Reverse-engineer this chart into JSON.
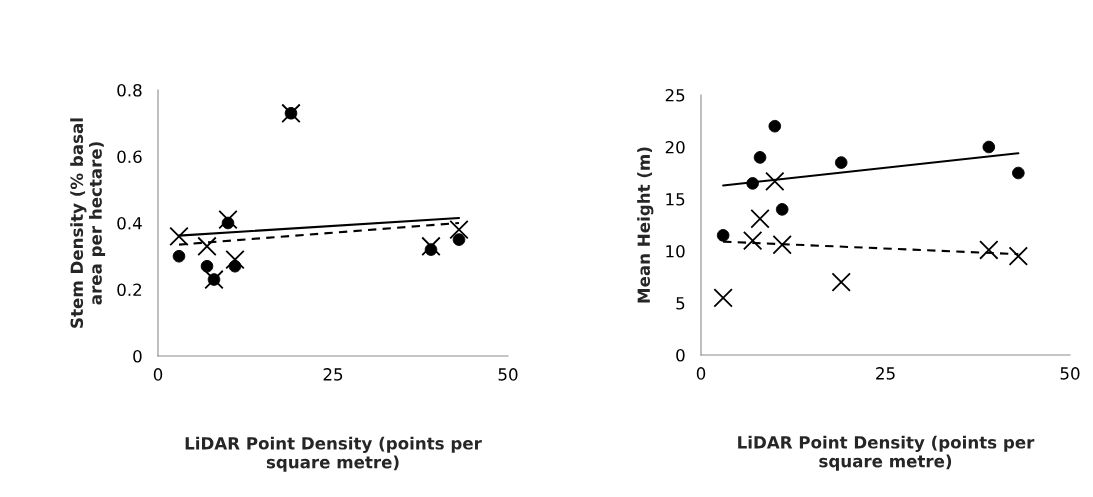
{
  "chart_data": [
    {
      "type": "scatter",
      "ylabel": "Stem Density (% basal\narea per hectare)",
      "xlabel": "LiDAR Point Density (points per\nsquare metre)",
      "xlim": [
        0,
        50
      ],
      "xticks": [
        0,
        25,
        50
      ],
      "ylim": [
        0,
        0.8
      ],
      "yticks": [
        0,
        0.2,
        0.4,
        0.6,
        0.8
      ],
      "grid": false,
      "legend": false,
      "series": [
        {
          "marker": "circle",
          "color": "#000000",
          "x": [
            3,
            7,
            8,
            10,
            11,
            19,
            39,
            43
          ],
          "values": [
            0.3,
            0.27,
            0.23,
            0.4,
            0.27,
            0.73,
            0.32,
            0.35
          ]
        },
        {
          "marker": "cross",
          "color": "#000000",
          "x": [
            3,
            7,
            8,
            10,
            11,
            19,
            39,
            43
          ],
          "values": [
            0.36,
            0.33,
            0.23,
            0.41,
            0.29,
            0.73,
            0.33,
            0.38
          ]
        },
        {
          "type": "line",
          "line_style": "solid",
          "color": "#000000",
          "x": [
            3,
            43
          ],
          "values": [
            0.362,
            0.415
          ]
        },
        {
          "type": "line",
          "line_style": "dashed",
          "color": "#000000",
          "x": [
            3,
            43
          ],
          "values": [
            0.335,
            0.4
          ]
        }
      ]
    },
    {
      "type": "scatter",
      "ylabel": "Mean Height (m)",
      "xlabel": "LiDAR Point Density (points per\nsquare metre)",
      "xlim": [
        0,
        50
      ],
      "xticks": [
        0,
        25,
        50
      ],
      "ylim": [
        0,
        25
      ],
      "yticks": [
        0,
        5,
        10,
        15,
        20,
        25
      ],
      "grid": false,
      "legend": false,
      "series": [
        {
          "marker": "circle",
          "color": "#000000",
          "x": [
            3,
            7,
            8,
            10,
            11,
            19,
            39,
            43
          ],
          "values": [
            11.5,
            16.5,
            19,
            22,
            14,
            18.5,
            20,
            17.5
          ]
        },
        {
          "marker": "cross",
          "color": "#000000",
          "x": [
            3,
            7,
            8,
            10,
            11,
            19,
            39,
            43
          ],
          "values": [
            5.5,
            11,
            13.1,
            16.7,
            10.6,
            7.0,
            10.1,
            9.5
          ]
        },
        {
          "type": "line",
          "line_style": "solid",
          "color": "#000000",
          "x": [
            3,
            43
          ],
          "values": [
            16.3,
            19.4
          ]
        },
        {
          "type": "line",
          "line_style": "dashed",
          "color": "#000000",
          "x": [
            3,
            43
          ],
          "values": [
            10.9,
            9.7
          ]
        }
      ]
    }
  ]
}
